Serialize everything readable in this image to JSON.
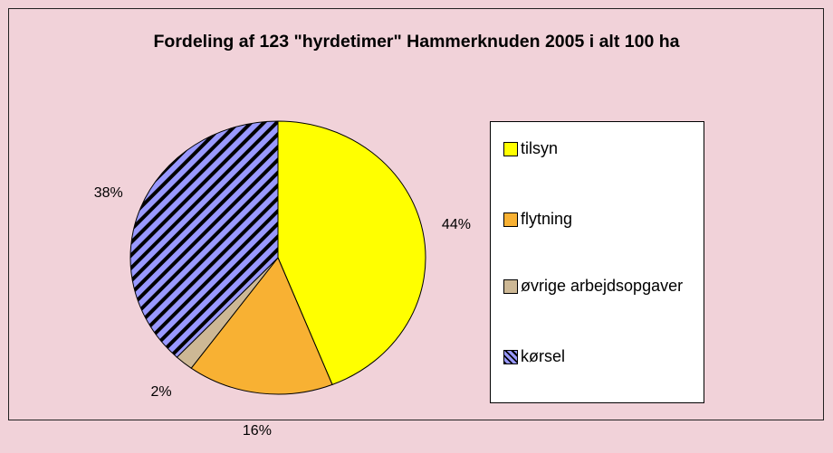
{
  "chart_data": {
    "type": "pie",
    "title": "Fordeling af 123 \"hyrdetimer\" Hammerknuden 2005 i alt 100 ha",
    "categories": [
      "tilsyn",
      "flytning",
      "øvrige arbejdsopgaver",
      "kørsel"
    ],
    "values": [
      44,
      16,
      2,
      38
    ],
    "value_labels": [
      "44%",
      "16%",
      "2%",
      "38%"
    ],
    "colors": [
      "#ffff00",
      "#f8b133",
      "#cdb895",
      "hatch"
    ],
    "legend": "right"
  }
}
